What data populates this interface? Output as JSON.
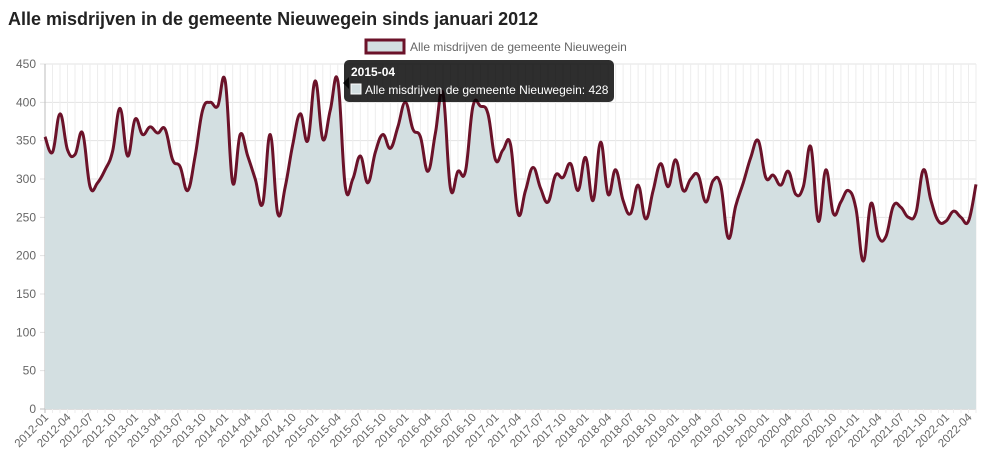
{
  "page": {
    "title": "Alle misdrijven in de gemeente Nieuwegein sinds januari 2012"
  },
  "chart_data": {
    "type": "area",
    "title": "Alle misdrijven in de gemeente Nieuwegein sinds januari 2012",
    "xlabel": "",
    "ylabel": "",
    "ylim": [
      0,
      450
    ],
    "yticks": [
      0,
      50,
      100,
      150,
      200,
      250,
      300,
      350,
      400,
      450
    ],
    "grid": true,
    "legend": "top-center",
    "start": "2012-01",
    "x": [
      "2012-01",
      "2012-02",
      "2012-03",
      "2012-04",
      "2012-05",
      "2012-06",
      "2012-07",
      "2012-08",
      "2012-09",
      "2012-10",
      "2012-11",
      "2012-12",
      "2013-01",
      "2013-02",
      "2013-03",
      "2013-04",
      "2013-05",
      "2013-06",
      "2013-07",
      "2013-08",
      "2013-09",
      "2013-10",
      "2013-11",
      "2013-12",
      "2014-01",
      "2014-02",
      "2014-03",
      "2014-04",
      "2014-05",
      "2014-06",
      "2014-07",
      "2014-08",
      "2014-09",
      "2014-10",
      "2014-11",
      "2014-12",
      "2015-01",
      "2015-02",
      "2015-03",
      "2015-04",
      "2015-05",
      "2015-06",
      "2015-07",
      "2015-08",
      "2015-09",
      "2015-10",
      "2015-11",
      "2015-12",
      "2016-01",
      "2016-02",
      "2016-03",
      "2016-04",
      "2016-05",
      "2016-06",
      "2016-07",
      "2016-08",
      "2016-09",
      "2016-10",
      "2016-11",
      "2016-12",
      "2017-01",
      "2017-02",
      "2017-03",
      "2017-04",
      "2017-05",
      "2017-06",
      "2017-07",
      "2017-08",
      "2017-09",
      "2017-10",
      "2017-11",
      "2017-12",
      "2018-01",
      "2018-02",
      "2018-03",
      "2018-04",
      "2018-05",
      "2018-06",
      "2018-07",
      "2018-08",
      "2018-09",
      "2018-10",
      "2018-11",
      "2018-12",
      "2019-01",
      "2019-02",
      "2019-03",
      "2019-04",
      "2019-05",
      "2019-06",
      "2019-07",
      "2019-08",
      "2019-09",
      "2019-10",
      "2019-11",
      "2019-12",
      "2020-01",
      "2020-02",
      "2020-03",
      "2020-04",
      "2020-05",
      "2020-06",
      "2020-07",
      "2020-08",
      "2020-09",
      "2020-10",
      "2020-11",
      "2020-12",
      "2021-01",
      "2021-02",
      "2021-03",
      "2021-04",
      "2021-05",
      "2021-06",
      "2021-07",
      "2021-08",
      "2021-09",
      "2021-10",
      "2021-11",
      "2021-12",
      "2022-01",
      "2022-02",
      "2022-03",
      "2022-04",
      "2022-05"
    ],
    "x_tick_labels": [
      "2012-01",
      "2012-04",
      "2012-07",
      "2012-10",
      "2013-01",
      "2013-04",
      "2013-07",
      "2013-10",
      "2014-01",
      "2014-04",
      "2014-07",
      "2014-10",
      "2015-01",
      "2015-04",
      "2015-07",
      "2015-10",
      "2016-01",
      "2016-04",
      "2016-07",
      "2016-10",
      "2017-01",
      "2017-04",
      "2017-07",
      "2017-10",
      "2018-01",
      "2018-04",
      "2018-07",
      "2018-10",
      "2019-01",
      "2019-04",
      "2019-07",
      "2019-10",
      "2020-01",
      "2020-04",
      "2020-07",
      "2020-10",
      "2021-01",
      "2021-04",
      "2021-07",
      "2021-10",
      "2022-01",
      "2022-04"
    ],
    "series": [
      {
        "name": "Alle misdrijven de gemeente Nieuwegein",
        "line_color": "#6b1229",
        "fill_color": "#d3dfe1",
        "values": [
          355,
          335,
          385,
          338,
          332,
          360,
          290,
          295,
          312,
          336,
          392,
          330,
          378,
          358,
          368,
          360,
          365,
          325,
          316,
          285,
          330,
          390,
          400,
          395,
          428,
          295,
          358,
          330,
          300,
          268,
          358,
          255,
          290,
          345,
          385,
          350,
          428,
          352,
          390,
          428,
          290,
          300,
          330,
          295,
          335,
          358,
          340,
          368,
          400,
          365,
          355,
          310,
          360,
          412,
          288,
          310,
          310,
          395,
          395,
          385,
          325,
          338,
          345,
          255,
          285,
          315,
          288,
          270,
          305,
          302,
          320,
          285,
          328,
          272,
          348,
          280,
          312,
          272,
          255,
          292,
          248,
          285,
          320,
          290,
          325,
          285,
          300,
          305,
          270,
          298,
          292,
          223,
          265,
          295,
          328,
          350,
          302,
          305,
          292,
          310,
          280,
          290,
          342,
          245,
          312,
          255,
          270,
          285,
          262,
          193,
          268,
          225,
          225,
          265,
          263,
          250,
          256,
          312,
          272,
          245,
          245,
          258,
          250,
          245,
          293
        ]
      }
    ],
    "tooltip": {
      "title": "2015-04",
      "label": "Alle misdrijven de gemeente Nieuwegein: 428"
    }
  }
}
